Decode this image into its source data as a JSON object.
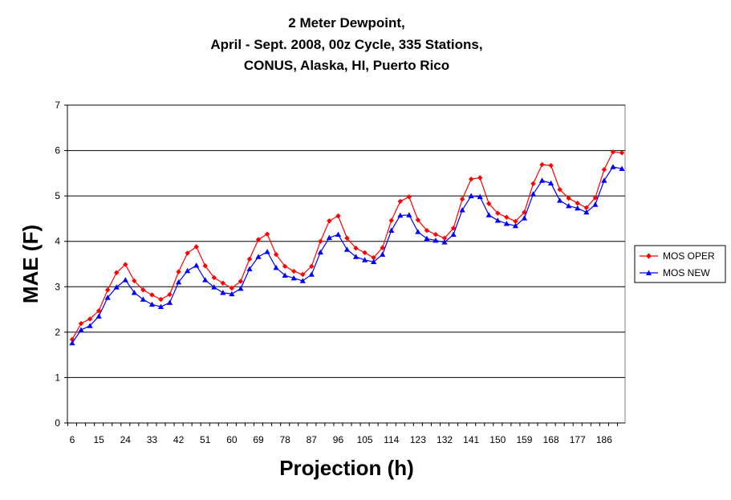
{
  "chart_data": {
    "type": "line",
    "title_lines": [
      "2 Meter Dewpoint,",
      "April - Sept. 2008, 00z Cycle, 335 Stations,",
      "CONUS, Alaska, HI, Puerto Rico"
    ],
    "xlabel": "Projection (h)",
    "ylabel": "MAE (F)",
    "ylim": [
      0,
      7
    ],
    "yticks": [
      "0",
      "1",
      "2",
      "3",
      "4",
      "5",
      "6",
      "7"
    ],
    "xlim": [
      6,
      192
    ],
    "xtick_labels": [
      "6",
      "15",
      "24",
      "33",
      "42",
      "51",
      "60",
      "69",
      "78",
      "87",
      "96",
      "105",
      "114",
      "123",
      "132",
      "141",
      "150",
      "159",
      "168",
      "177",
      "186"
    ],
    "grid": "horizontal",
    "legend_position": "right",
    "x": [
      6,
      9,
      12,
      15,
      18,
      21,
      24,
      27,
      30,
      33,
      36,
      39,
      42,
      45,
      48,
      51,
      54,
      57,
      60,
      63,
      66,
      69,
      72,
      75,
      78,
      81,
      84,
      87,
      90,
      93,
      96,
      99,
      102,
      105,
      108,
      111,
      114,
      117,
      120,
      123,
      126,
      129,
      132,
      135,
      138,
      141,
      144,
      147,
      150,
      153,
      156,
      159,
      162,
      165,
      168,
      171,
      174,
      177,
      180,
      183,
      186,
      189,
      192
    ],
    "series": [
      {
        "name": "MOS OPER",
        "color": "#ff0000",
        "marker": "diamond",
        "values": [
          1.84,
          2.19,
          2.29,
          2.47,
          2.93,
          3.31,
          3.49,
          3.13,
          2.93,
          2.82,
          2.72,
          2.83,
          3.33,
          3.74,
          3.88,
          3.46,
          3.2,
          3.08,
          2.97,
          3.12,
          3.61,
          4.04,
          4.16,
          3.71,
          3.45,
          3.34,
          3.27,
          3.45,
          4.0,
          4.45,
          4.56,
          4.07,
          3.85,
          3.75,
          3.64,
          3.86,
          4.46,
          4.88,
          4.98,
          4.47,
          4.24,
          4.15,
          4.07,
          4.29,
          4.93,
          5.37,
          5.4,
          4.83,
          4.62,
          4.53,
          4.44,
          4.64,
          5.27,
          5.69,
          5.67,
          5.14,
          4.95,
          4.84,
          4.74,
          4.96,
          5.58,
          5.97,
          5.95
        ]
      },
      {
        "name": "MOS NEW",
        "color": "#0000ff",
        "marker": "triangle",
        "values": [
          1.76,
          2.05,
          2.14,
          2.35,
          2.76,
          2.99,
          3.15,
          2.87,
          2.72,
          2.61,
          2.56,
          2.65,
          3.1,
          3.35,
          3.47,
          3.15,
          2.99,
          2.87,
          2.84,
          2.96,
          3.39,
          3.66,
          3.77,
          3.42,
          3.25,
          3.19,
          3.13,
          3.27,
          3.76,
          4.08,
          4.15,
          3.82,
          3.66,
          3.59,
          3.55,
          3.71,
          4.24,
          4.57,
          4.58,
          4.21,
          4.06,
          4.02,
          3.98,
          4.15,
          4.69,
          5.0,
          4.98,
          4.58,
          4.46,
          4.39,
          4.34,
          4.51,
          5.04,
          5.34,
          5.28,
          4.9,
          4.78,
          4.73,
          4.64,
          4.81,
          5.34,
          5.64,
          5.6
        ]
      }
    ]
  }
}
